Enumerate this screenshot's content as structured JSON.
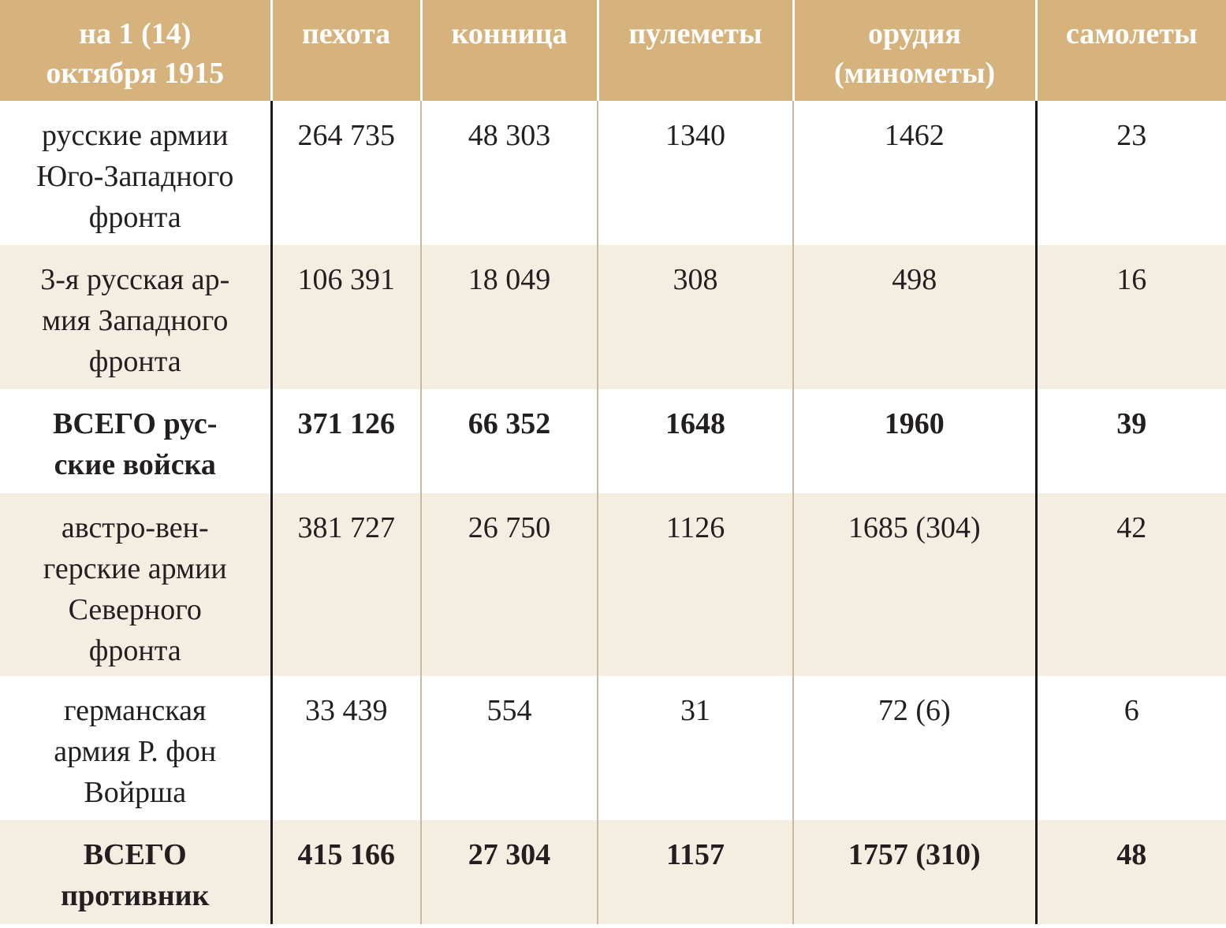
{
  "table": {
    "headers": [
      "на 1 (14)\nоктября 1915",
      "пехота",
      "конница",
      "пулеметы",
      "орудия\n(минометы)",
      "самолеты"
    ],
    "rows": [
      {
        "label": "русские армии\nЮго-Западного\nфронта",
        "cells": [
          "264 735",
          "48 303",
          "1340",
          "1462",
          "23"
        ]
      },
      {
        "label": "3-я русская ар-\nмия Западного\nфронта",
        "cells": [
          "106 391",
          "18 049",
          "308",
          "498",
          "16"
        ]
      },
      {
        "label": "ВСЕГО рус-\nские войска",
        "cells": [
          "371 126",
          "66 352",
          "1648",
          "1960",
          "39"
        ]
      },
      {
        "label": "австро-вен-\nгерские армии\nСеверного\nфронта",
        "cells": [
          "381 727",
          "26 750",
          "1126",
          "1685 (304)",
          "42"
        ]
      },
      {
        "label": "германская\nармия Р. фон\nВойрша",
        "cells": [
          "33 439",
          "554",
          "31",
          "72 (6)",
          "6"
        ]
      },
      {
        "label": "ВСЕГО\nпротивник",
        "cells": [
          "415 166",
          "27 304",
          "1157",
          "1757 (310)",
          "48"
        ]
      }
    ]
  },
  "colors": {
    "header_bg": "#d6b27c",
    "header_text": "#ffffff",
    "stripe_bg": "#f4eee2",
    "text": "#231f20",
    "divider": "#1a1a1a"
  }
}
